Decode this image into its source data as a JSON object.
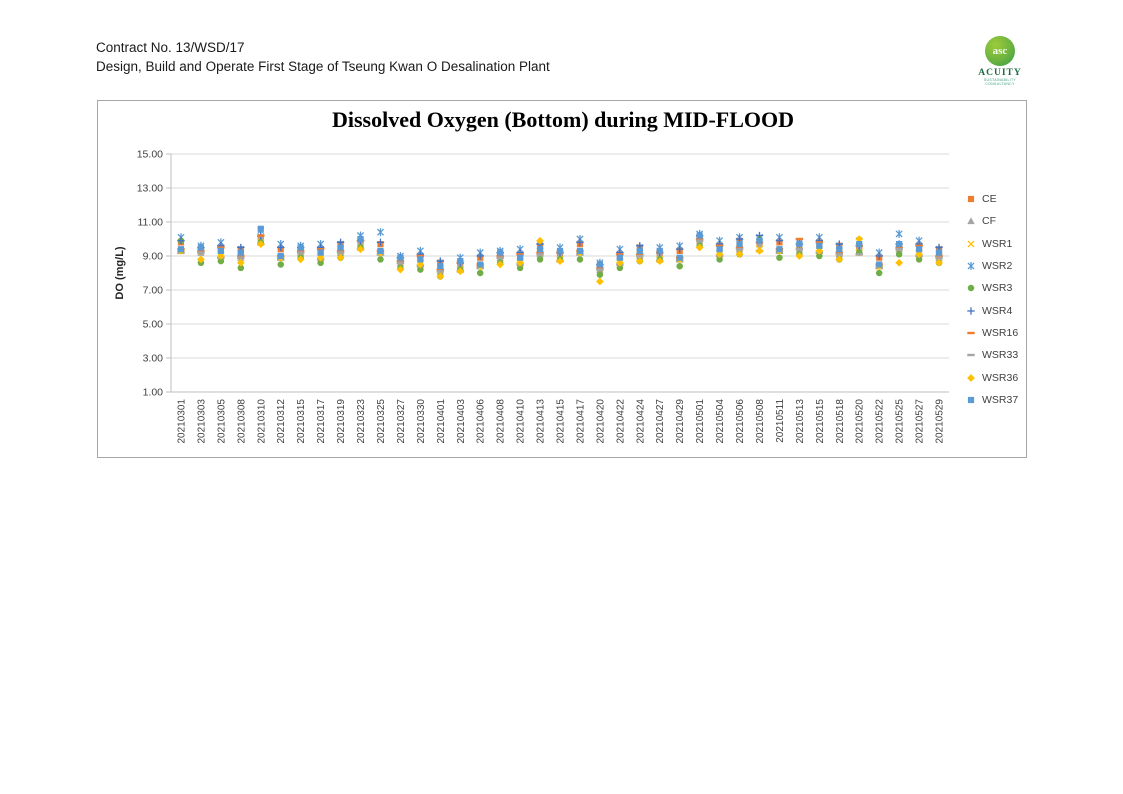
{
  "page": {
    "header_line1": "Contract No. 13/WSD/17",
    "header_line2": "Design, Build and Operate First Stage of Tseung Kwan O Desalination Plant",
    "logo": {
      "monogram": "asc",
      "brand": "ACUITY",
      "tagline_line1": "SUSTAINABILITY",
      "tagline_line2": "CONSULTANCY"
    }
  },
  "chart_data": {
    "type": "scatter",
    "title": "Dissolved Oxygen (Bottom) during MID-FLOOD",
    "xlabel": "",
    "ylabel": "DO (mg/L)",
    "ylim": [
      1,
      15
    ],
    "yticks": [
      15,
      13,
      11,
      9,
      7,
      5,
      3,
      1
    ],
    "ytick_labels": [
      "15.00",
      "13.00",
      "11.00",
      "9.00",
      "7.00",
      "5.00",
      "3.00",
      "1.00"
    ],
    "grid": true,
    "legend_position": "right",
    "colors": {
      "gridline": "#d9d9d9",
      "axis": "#bfbfbf",
      "tick_text": "#404040",
      "title_text": "#000000"
    },
    "categories": [
      "20210301",
      "20210303",
      "20210305",
      "20210308",
      "20210310",
      "20210312",
      "20210315",
      "20210317",
      "20210319",
      "20210323",
      "20210325",
      "20210327",
      "20210330",
      "20210401",
      "20210403",
      "20210406",
      "20210408",
      "20210410",
      "20210413",
      "20210415",
      "20210417",
      "20210420",
      "20210422",
      "20210424",
      "20210427",
      "20210429",
      "20210501",
      "20210504",
      "20210506",
      "20210508",
      "20210511",
      "20210513",
      "20210515",
      "20210518",
      "20210520",
      "20210522",
      "20210525",
      "20210527",
      "20210529"
    ],
    "series": [
      {
        "name": "CE",
        "marker": "square",
        "color": "#ED7D31",
        "values": [
          9.8,
          9.4,
          9.5,
          9.4,
          10.1,
          9.4,
          9.4,
          9.4,
          9.7,
          9.8,
          9.7,
          8.8,
          9.0,
          8.6,
          8.5,
          8.9,
          9.1,
          9.1,
          9.6,
          9.1,
          9.7,
          8.4,
          9.1,
          9.5,
          9.1,
          9.3,
          10.1,
          9.6,
          9.9,
          9.7,
          9.8,
          9.6,
          9.8,
          9.6,
          9.5,
          8.9,
          9.6,
          9.6,
          9.4
        ]
      },
      {
        "name": "CF",
        "marker": "triangle",
        "color": "#A5A5A5",
        "values": [
          9.3,
          9.2,
          9.4,
          8.9,
          10.1,
          8.9,
          9.2,
          9.3,
          9.2,
          9.8,
          9.2,
          8.6,
          8.9,
          8.1,
          8.5,
          8.4,
          8.9,
          9.0,
          9.1,
          9.1,
          9.2,
          8.2,
          9.0,
          9.0,
          9.1,
          8.8,
          9.9,
          9.5,
          9.4,
          9.7,
          9.3,
          9.4,
          9.7,
          9.1,
          9.5,
          8.4,
          9.4,
          9.5,
          8.9
        ]
      },
      {
        "name": "WSR1",
        "marker": "x",
        "color": "#FFC000",
        "values": [
          9.3,
          9.3,
          9.0,
          9.0,
          9.8,
          8.9,
          9.3,
          8.9,
          9.3,
          9.5,
          9.2,
          8.7,
          8.5,
          8.2,
          8.2,
          8.4,
          9.0,
          8.6,
          9.2,
          8.8,
          10.0,
          8.3,
          8.6,
          9.1,
          8.8,
          8.8,
          10.0,
          9.1,
          9.5,
          9.4,
          9.3,
          9.5,
          9.3,
          9.2,
          9.2,
          8.4,
          9.5,
          9.1,
          9.0
        ]
      },
      {
        "name": "WSR2",
        "marker": "star",
        "color": "#5B9BD5",
        "values": [
          10.1,
          9.6,
          9.8,
          9.4,
          10.5,
          9.7,
          9.6,
          9.7,
          9.7,
          10.2,
          10.4,
          9.0,
          9.3,
          8.6,
          8.9,
          9.2,
          9.3,
          9.4,
          9.6,
          9.5,
          10.0,
          8.6,
          9.4,
          9.5,
          9.5,
          9.6,
          10.3,
          9.9,
          10.1,
          10.1,
          10.1,
          9.8,
          10.1,
          9.6,
          9.9,
          9.2,
          10.3,
          9.9,
          9.4
        ]
      },
      {
        "name": "WSR3",
        "marker": "circle",
        "color": "#70AD47",
        "values": [
          9.9,
          8.6,
          8.7,
          8.3,
          9.8,
          8.5,
          8.9,
          8.6,
          8.9,
          9.5,
          8.8,
          8.3,
          8.2,
          7.8,
          8.2,
          8.0,
          8.6,
          8.3,
          8.8,
          8.8,
          8.8,
          7.9,
          8.3,
          8.7,
          8.8,
          8.4,
          9.6,
          8.8,
          9.1,
          10.0,
          8.9,
          9.1,
          9.0,
          8.8,
          9.2,
          8.0,
          9.1,
          8.8,
          8.6
        ]
      },
      {
        "name": "WSR4",
        "marker": "plus",
        "color": "#4472C4",
        "values": [
          9.9,
          9.5,
          9.6,
          9.5,
          10.2,
          9.5,
          9.5,
          9.5,
          9.8,
          9.9,
          9.8,
          8.9,
          9.1,
          8.7,
          8.6,
          9.0,
          9.2,
          9.2,
          9.7,
          9.2,
          9.8,
          8.5,
          9.2,
          9.6,
          9.2,
          9.4,
          10.2,
          9.7,
          10.0,
          10.2,
          9.9,
          9.7,
          9.9,
          9.7,
          9.6,
          9.0,
          9.7,
          9.7,
          9.5
        ]
      },
      {
        "name": "WSR16",
        "marker": "dash",
        "color": "#ED7D31",
        "values": [
          9.4,
          9.3,
          9.5,
          9.0,
          10.2,
          9.0,
          9.3,
          9.4,
          9.3,
          9.9,
          9.3,
          8.7,
          9.0,
          8.2,
          8.6,
          8.5,
          9.0,
          9.1,
          9.2,
          9.2,
          9.3,
          8.3,
          9.1,
          9.1,
          9.2,
          8.9,
          10.0,
          9.6,
          9.5,
          9.8,
          9.4,
          10.0,
          9.8,
          9.2,
          9.6,
          8.5,
          9.5,
          9.6,
          9.0
        ]
      },
      {
        "name": "WSR33",
        "marker": "dash",
        "color": "#A5A5A5",
        "values": [
          9.2,
          9.2,
          8.9,
          8.9,
          9.7,
          8.8,
          9.2,
          8.8,
          9.2,
          9.4,
          9.1,
          8.6,
          8.4,
          8.1,
          8.1,
          8.3,
          8.9,
          8.5,
          9.1,
          8.7,
          9.1,
          8.2,
          8.5,
          9.0,
          8.7,
          8.7,
          9.9,
          9.0,
          9.4,
          9.3,
          9.2,
          9.4,
          9.2,
          9.1,
          9.1,
          8.3,
          9.4,
          9.0,
          8.9
        ]
      },
      {
        "name": "WSR36",
        "marker": "diamond",
        "color": "#FFC000",
        "values": [
          9.3,
          8.8,
          9.0,
          8.6,
          9.7,
          8.9,
          8.8,
          8.9,
          8.9,
          9.4,
          9.2,
          8.2,
          8.5,
          7.8,
          8.1,
          8.4,
          8.5,
          8.6,
          9.9,
          8.7,
          9.2,
          7.5,
          8.6,
          8.7,
          8.7,
          8.8,
          9.5,
          9.1,
          9.1,
          9.3,
          9.3,
          9.0,
          9.3,
          8.8,
          10.0,
          8.4,
          8.6,
          9.1,
          8.6
        ]
      },
      {
        "name": "WSR37",
        "marker": "square",
        "color": "#5B9BD5",
        "values": [
          9.4,
          9.5,
          9.3,
          9.2,
          10.6,
          9.0,
          9.5,
          9.2,
          9.5,
          10.0,
          9.3,
          8.9,
          8.8,
          8.4,
          8.7,
          8.5,
          9.2,
          8.9,
          9.4,
          9.3,
          9.3,
          8.5,
          8.9,
          9.3,
          9.3,
          8.9,
          10.2,
          9.4,
          9.7,
          9.9,
          9.4,
          9.7,
          9.6,
          9.4,
          9.7,
          8.5,
          9.7,
          9.4,
          9.2
        ]
      }
    ]
  }
}
